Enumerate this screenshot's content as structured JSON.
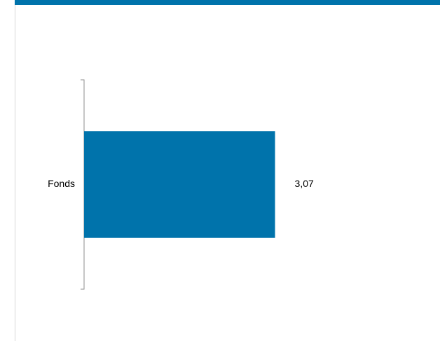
{
  "colors": {
    "accent": "#0073AB",
    "axis": "#8C8C8C",
    "frame": "#D8D8D8"
  },
  "chart_data": {
    "type": "bar",
    "orientation": "horizontal",
    "categories": [
      "Fonds"
    ],
    "values": [
      3.07
    ],
    "data_labels": [
      "3,07"
    ],
    "title": "",
    "xlabel": "",
    "ylabel": "",
    "xlim": [
      0,
      4.1
    ],
    "grid": false,
    "legend": "none"
  }
}
